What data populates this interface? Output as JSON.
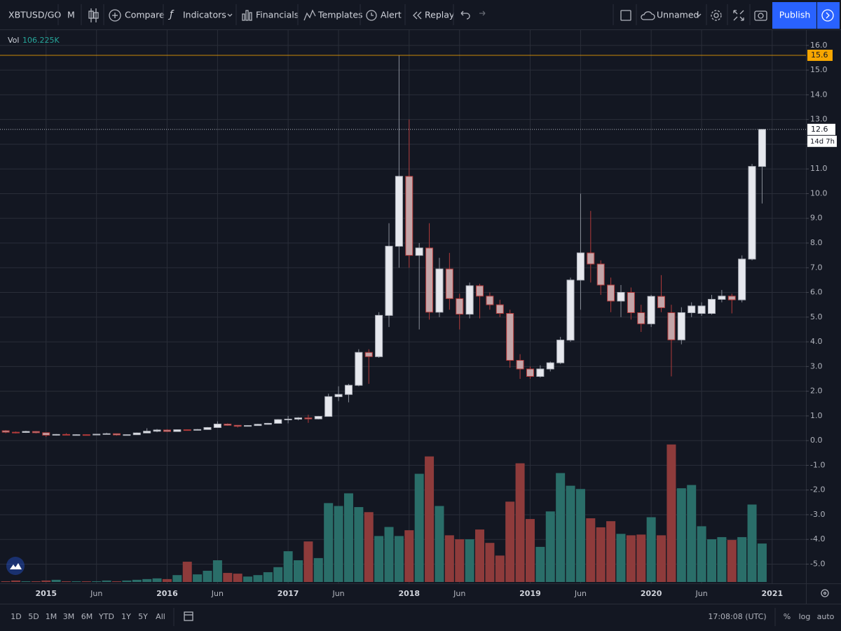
{
  "toolbar": {
    "symbol": "XBTUSD/GO",
    "interval": "M",
    "compare": "Compare",
    "indicators": "Indicators",
    "financials": "Financials",
    "templates": "Templates",
    "alert": "Alert",
    "replay": "Replay",
    "layout_name": "Unnamed",
    "publish": "Publish"
  },
  "bottom_bar": {
    "ranges": [
      "1D",
      "5D",
      "1M",
      "3M",
      "6M",
      "YTD",
      "1Y",
      "5Y",
      "All"
    ],
    "clock": "17:08:08 (UTC)",
    "percent": "%",
    "log": "log",
    "auto": "auto"
  },
  "chart_data": {
    "type": "candlestick",
    "categories": [
      null,
      null,
      null,
      null,
      "2015",
      null,
      null,
      null,
      null,
      "Jun",
      null,
      null,
      null,
      null,
      null,
      null,
      "2016",
      null,
      null,
      null,
      null,
      "Jun",
      null,
      null,
      null,
      null,
      null,
      null,
      "2017",
      null,
      null,
      null,
      null,
      "Jun",
      null,
      null,
      null,
      null,
      null,
      null,
      "2018",
      null,
      null,
      null,
      null,
      "Jun",
      null,
      null,
      null,
      null,
      null,
      null,
      "2019",
      null,
      null,
      null,
      null,
      "Jun",
      null,
      null,
      null,
      null,
      null,
      null,
      "2020",
      null,
      null,
      null,
      null,
      "Jun",
      null,
      null,
      null,
      null,
      null,
      null,
      "2021"
    ],
    "open": [
      0.4,
      0.34,
      0.33,
      0.37,
      0.32,
      0.22,
      0.25,
      0.24,
      0.24,
      0.23,
      0.26,
      0.28,
      0.23,
      0.24,
      0.31,
      0.38,
      0.43,
      0.37,
      0.44,
      0.42,
      0.45,
      0.53,
      0.67,
      0.62,
      0.58,
      0.61,
      0.66,
      0.7,
      0.85,
      0.87,
      0.92,
      0.88,
      0.98,
      1.78,
      1.87,
      2.24,
      3.57,
      3.4,
      5.07,
      7.87,
      10.7,
      7.5,
      7.8,
      5.2,
      6.95,
      5.75,
      5.12,
      6.27,
      5.85,
      5.5,
      5.15,
      3.25,
      2.9,
      2.6,
      2.9,
      3.15,
      4.07,
      6.5,
      7.6,
      7.15,
      6.3,
      5.65,
      6.0,
      5.18,
      4.73,
      5.84,
      5.18,
      4.08,
      5.18,
      5.15,
      5.15,
      5.72,
      5.85,
      5.7,
      7.35,
      11.1,
      null
    ],
    "high": [
      0.43,
      0.37,
      0.4,
      0.39,
      0.33,
      0.27,
      0.3,
      0.26,
      0.25,
      0.27,
      0.32,
      0.29,
      0.25,
      0.33,
      0.5,
      0.47,
      0.46,
      0.45,
      0.45,
      0.47,
      0.55,
      0.78,
      0.7,
      0.63,
      0.62,
      0.68,
      0.72,
      0.87,
      1.0,
      0.95,
      1.05,
      1.0,
      1.9,
      2.2,
      2.3,
      3.7,
      3.7,
      5.2,
      8.8,
      15.6,
      13.0,
      8.0,
      8.8,
      7.4,
      7.6,
      5.95,
      6.4,
      6.35,
      6.0,
      5.7,
      5.3,
      3.5,
      3.0,
      3.05,
      3.2,
      4.2,
      6.6,
      10.0,
      9.3,
      7.3,
      6.6,
      6.3,
      6.2,
      5.5,
      5.9,
      6.7,
      5.5,
      5.4,
      5.6,
      5.6,
      5.9,
      6.1,
      5.95,
      7.5,
      11.2,
      12.6,
      null
    ],
    "low": [
      0.3,
      0.29,
      0.31,
      0.29,
      0.15,
      0.2,
      0.23,
      0.21,
      0.22,
      0.22,
      0.25,
      0.2,
      0.22,
      0.23,
      0.3,
      0.34,
      0.35,
      0.36,
      0.4,
      0.41,
      0.44,
      0.52,
      0.6,
      0.53,
      0.57,
      0.6,
      0.65,
      0.69,
      0.7,
      0.82,
      0.72,
      0.86,
      0.97,
      1.6,
      1.55,
      2.2,
      2.3,
      3.35,
      4.6,
      7.0,
      7.0,
      4.5,
      4.9,
      5.0,
      5.3,
      4.5,
      4.95,
      4.95,
      5.3,
      5.0,
      2.95,
      2.5,
      2.5,
      2.55,
      2.8,
      3.1,
      4.0,
      5.3,
      6.4,
      5.9,
      5.2,
      5.0,
      4.9,
      4.4,
      4.6,
      5.2,
      2.6,
      3.9,
      5.0,
      5.05,
      5.1,
      5.6,
      5.15,
      5.6,
      7.3,
      9.6,
      null
    ],
    "close": [
      0.34,
      0.33,
      0.37,
      0.32,
      0.22,
      0.25,
      0.24,
      0.24,
      0.23,
      0.26,
      0.28,
      0.23,
      0.24,
      0.31,
      0.38,
      0.43,
      0.37,
      0.44,
      0.42,
      0.45,
      0.53,
      0.67,
      0.62,
      0.58,
      0.61,
      0.66,
      0.7,
      0.85,
      0.87,
      0.92,
      0.88,
      0.98,
      1.78,
      1.87,
      2.24,
      3.57,
      3.4,
      5.07,
      7.87,
      10.7,
      7.5,
      7.8,
      5.2,
      6.95,
      5.75,
      5.12,
      6.27,
      5.85,
      5.5,
      5.15,
      3.25,
      2.9,
      2.6,
      2.9,
      3.15,
      4.07,
      6.5,
      7.6,
      7.15,
      6.3,
      5.65,
      6.0,
      5.18,
      4.73,
      5.84,
      5.38,
      4.08,
      5.18,
      5.45,
      5.45,
      5.72,
      5.85,
      5.7,
      7.35,
      11.1,
      12.6,
      null
    ],
    "volume": {
      "name": "Vol",
      "values": [
        2,
        4,
        2,
        2,
        4,
        6,
        2,
        2,
        2,
        2,
        4,
        2,
        4,
        6,
        8,
        10,
        8,
        19,
        56,
        21,
        31,
        60,
        25,
        23,
        15,
        19,
        27,
        41,
        85,
        60,
        112,
        66,
        218,
        210,
        245,
        207,
        193,
        127,
        152,
        127,
        143,
        299,
        347,
        210,
        129,
        118,
        118,
        145,
        108,
        73,
        222,
        328,
        174,
        97,
        195,
        301,
        266,
        257,
        176,
        151,
        168,
        133,
        129,
        131,
        179,
        129,
        380,
        259,
        268,
        154,
        118,
        124,
        116,
        124,
        214,
        106.225,
        null
      ],
      "value_labels": [
        null,
        null,
        null,
        null,
        null,
        null,
        null,
        null,
        null,
        null,
        null,
        null,
        null,
        null,
        null,
        null,
        null,
        null,
        null,
        null,
        null,
        null,
        null,
        null,
        null,
        null,
        null,
        null,
        null,
        null,
        null,
        null,
        null,
        null,
        null,
        null,
        null,
        null,
        null,
        null,
        null,
        null,
        null,
        null,
        null,
        null,
        null,
        null,
        null,
        null,
        null,
        null,
        null,
        null,
        null,
        null,
        null,
        null,
        null,
        null,
        null,
        null,
        null,
        null,
        null,
        null,
        null,
        null,
        null,
        null,
        null,
        null,
        null,
        null,
        null,
        "106.225K",
        null
      ]
    },
    "volume_ylim": [
      0,
      420
    ],
    "ylim": [
      -5.78,
      16.62
    ],
    "yticks": [
      {
        "value": 16,
        "label": "16.0"
      },
      {
        "value": 15,
        "label": "15.0"
      },
      {
        "value": 14,
        "label": "14.0"
      },
      {
        "value": 13,
        "label": "13.0"
      },
      {
        "value": 12,
        "label": "12.0"
      },
      {
        "value": 11,
        "label": "11.0"
      },
      {
        "value": 10,
        "label": "10.0"
      },
      {
        "value": 9,
        "label": "9.0"
      },
      {
        "value": 8,
        "label": "8.0"
      },
      {
        "value": 7,
        "label": "7.0"
      },
      {
        "value": 6,
        "label": "6.0"
      },
      {
        "value": 5,
        "label": "5.0"
      },
      {
        "value": 4,
        "label": "4.0"
      },
      {
        "value": 3,
        "label": "3.0"
      },
      {
        "value": 2,
        "label": "2.0"
      },
      {
        "value": 1,
        "label": "1.0"
      },
      {
        "value": 0,
        "label": "0.0"
      },
      {
        "value": -1,
        "label": "-1.0"
      },
      {
        "value": -2,
        "label": "-2.0"
      },
      {
        "value": -3,
        "label": "-3.0"
      },
      {
        "value": -4,
        "label": "-4.0"
      },
      {
        "value": -5,
        "label": "-5.0"
      }
    ],
    "grid": true,
    "up_color": "#e6e8ee",
    "down_color": "#c4a5a8",
    "down_border": "#b23a3a",
    "volume_up_color": "#2a6e69",
    "volume_down_color": "#8e3b3b",
    "high_line_color": "#f7a600",
    "countdown": "14d 7h"
  }
}
